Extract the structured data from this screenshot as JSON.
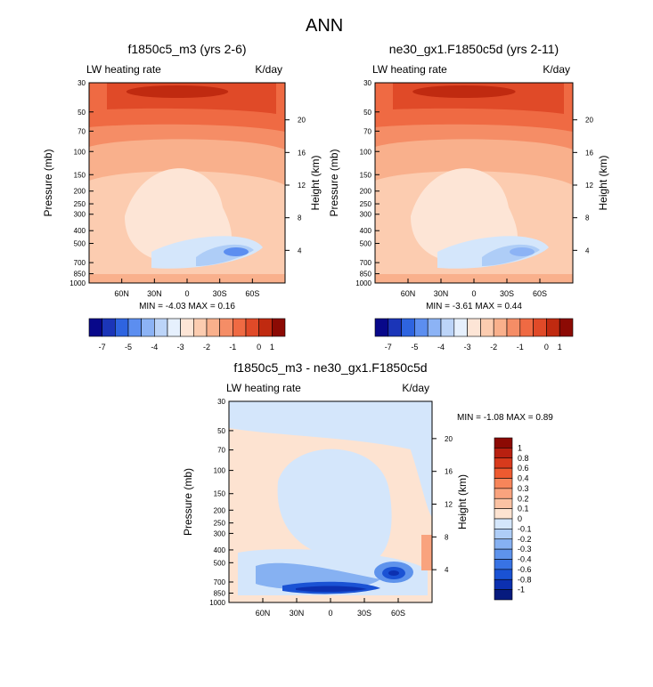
{
  "page_title": "ANN",
  "chart_data": [
    {
      "type": "heatmap",
      "id": "panel1",
      "title": "f1850c5_m3 (yrs 2-6)",
      "left_label": "LW heating rate",
      "right_label": "K/day",
      "ylabel": "Pressure (mb)",
      "y2label": "Height (km)",
      "xticks": [
        "60N",
        "30N",
        "0",
        "30S",
        "60S"
      ],
      "xtick_values": [
        60,
        30,
        0,
        -30,
        -60
      ],
      "xlim": [
        90,
        -90
      ],
      "yticks": [
        "30",
        "50",
        "70",
        "100",
        "150",
        "200",
        "250",
        "300",
        "400",
        "500",
        "700",
        "850",
        "1000"
      ],
      "ytick_values": [
        30,
        50,
        70,
        100,
        150,
        200,
        250,
        300,
        400,
        500,
        700,
        850,
        1000
      ],
      "ylim": [
        30,
        1000
      ],
      "y2ticks": [
        "20",
        "16",
        "12",
        "8",
        "4"
      ],
      "minmax": "MIN =  -4.03  MAX =   0.16",
      "colorbar": {
        "orientation": "horizontal",
        "labels": [
          "-7",
          "-5",
          "-4",
          "-3",
          "-2",
          "-1",
          "0",
          "1"
        ],
        "colors": [
          "#08088a",
          "#1b35b8",
          "#2e64e0",
          "#5c8ef0",
          "#8cb3f5",
          "#bcd4f8",
          "#e6f0fd",
          "#fde5d6",
          "#fcccb0",
          "#f9b08c",
          "#f58d66",
          "#ef6a43",
          "#e04a28",
          "#c02a10",
          "#8c0a04"
        ]
      }
    },
    {
      "type": "heatmap",
      "id": "panel2",
      "title": "ne30_gx1.F1850c5d (yrs 2-11)",
      "left_label": "LW heating rate",
      "right_label": "K/day",
      "ylabel": "Pressure (mb)",
      "y2label": "Height (km)",
      "xticks": [
        "60N",
        "30N",
        "0",
        "30S",
        "60S"
      ],
      "xtick_values": [
        60,
        30,
        0,
        -30,
        -60
      ],
      "xlim": [
        90,
        -90
      ],
      "yticks": [
        "30",
        "50",
        "70",
        "100",
        "150",
        "200",
        "250",
        "300",
        "400",
        "500",
        "700",
        "850",
        "1000"
      ],
      "ytick_values": [
        30,
        50,
        70,
        100,
        150,
        200,
        250,
        300,
        400,
        500,
        700,
        850,
        1000
      ],
      "ylim": [
        30,
        1000
      ],
      "y2ticks": [
        "20",
        "16",
        "12",
        "8",
        "4"
      ],
      "minmax": "MIN =  -3.61  MAX =   0.44",
      "colorbar": {
        "orientation": "horizontal",
        "labels": [
          "-7",
          "-5",
          "-4",
          "-3",
          "-2",
          "-1",
          "0",
          "1"
        ],
        "colors": [
          "#08088a",
          "#1b35b8",
          "#2e64e0",
          "#5c8ef0",
          "#8cb3f5",
          "#bcd4f8",
          "#e6f0fd",
          "#fde5d6",
          "#fcccb0",
          "#f9b08c",
          "#f58d66",
          "#ef6a43",
          "#e04a28",
          "#c02a10",
          "#8c0a04"
        ]
      }
    },
    {
      "type": "heatmap",
      "id": "panel3",
      "title": "f1850c5_m3 - ne30_gx1.F1850c5d",
      "left_label": "LW heating rate",
      "right_label": "K/day",
      "ylabel": "Pressure (mb)",
      "y2label": "Height (km)",
      "xticks": [
        "60N",
        "30N",
        "0",
        "30S",
        "60S"
      ],
      "xtick_values": [
        60,
        30,
        0,
        -30,
        -60
      ],
      "xlim": [
        90,
        -90
      ],
      "yticks": [
        "30",
        "50",
        "70",
        "100",
        "150",
        "200",
        "250",
        "300",
        "400",
        "500",
        "700",
        "850",
        "1000"
      ],
      "ytick_values": [
        30,
        50,
        70,
        100,
        150,
        200,
        250,
        300,
        400,
        500,
        700,
        850,
        1000
      ],
      "ylim": [
        30,
        1000
      ],
      "y2ticks": [
        "20",
        "16",
        "12",
        "8",
        "4"
      ],
      "minmax": "MIN =  -1.08  MAX =   0.89",
      "colorbar": {
        "orientation": "vertical",
        "labels": [
          "1",
          "0.8",
          "0.6",
          "0.4",
          "0.3",
          "0.2",
          "0.1",
          "0",
          "-0.1",
          "-0.2",
          "-0.3",
          "-0.4",
          "-0.6",
          "-0.8",
          "-1"
        ],
        "colors": [
          "#8c0a04",
          "#b82010",
          "#d83a1c",
          "#ee5a30",
          "#f7855a",
          "#f9a37e",
          "#fbc2a3",
          "#fde3d1",
          "#d4e6fb",
          "#aecdf7",
          "#86b1f2",
          "#5e93ec",
          "#3873e4",
          "#1a52d4",
          "#0c30b0",
          "#061a7e"
        ]
      }
    }
  ]
}
